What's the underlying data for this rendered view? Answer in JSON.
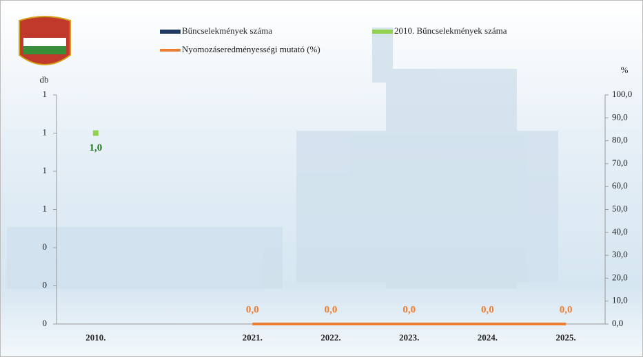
{
  "chart_data": {
    "type": "combo",
    "categories": [
      "2010.",
      null,
      "2021.",
      "2022.",
      "2023.",
      "2024.",
      "2025."
    ],
    "series": [
      {
        "name": "Bűncselekmények száma",
        "type": "bar",
        "color": "#1f3864",
        "values": [
          0,
          null,
          null,
          null,
          null,
          null,
          null
        ]
      },
      {
        "name": "2010. Bűncselekmények száma",
        "type": "point",
        "color": "#92d050",
        "values": [
          1,
          null,
          null,
          null,
          null,
          null,
          null
        ],
        "value_labels": [
          "1,0",
          null,
          null,
          null,
          null,
          null,
          null
        ],
        "label_color": "#1e7a1e"
      },
      {
        "name": "Nyomozáseredményességi mutató (%)",
        "type": "line",
        "axis": "y2",
        "color": "#ed7d31",
        "values": [
          null,
          null,
          0,
          0,
          0,
          0,
          0
        ],
        "value_labels": [
          null,
          null,
          "0,0",
          "0,0",
          "0,0",
          "0,0",
          "0,0"
        ],
        "label_color": "#ed7d31"
      }
    ],
    "ylabel": "db",
    "y2label": "%",
    "ylim": [
      0,
      1.2
    ],
    "yticks": [
      0,
      {
        "value": 0.2,
        "label": "0"
      },
      {
        "value": 0.4,
        "label": "0"
      },
      {
        "value": 0.6,
        "label": "1"
      },
      {
        "value": 0.8,
        "label": "1"
      },
      1,
      {
        "value": 1.2,
        "label": "1"
      }
    ],
    "y2lim": [
      0,
      100
    ],
    "y2ticks": [
      {
        "value": 0,
        "label": "0,0"
      },
      {
        "value": 10,
        "label": "10,0"
      },
      {
        "value": 20,
        "label": "20,0"
      },
      {
        "value": 30,
        "label": "30,0"
      },
      {
        "value": 40,
        "label": "40,0"
      },
      {
        "value": 50,
        "label": "50,0"
      },
      {
        "value": 60,
        "label": "60,0"
      },
      {
        "value": 70,
        "label": "70,0"
      },
      {
        "value": 80,
        "label": "80,0"
      },
      {
        "value": 90,
        "label": "90,0"
      },
      {
        "value": 100,
        "label": "100,0"
      }
    ]
  }
}
